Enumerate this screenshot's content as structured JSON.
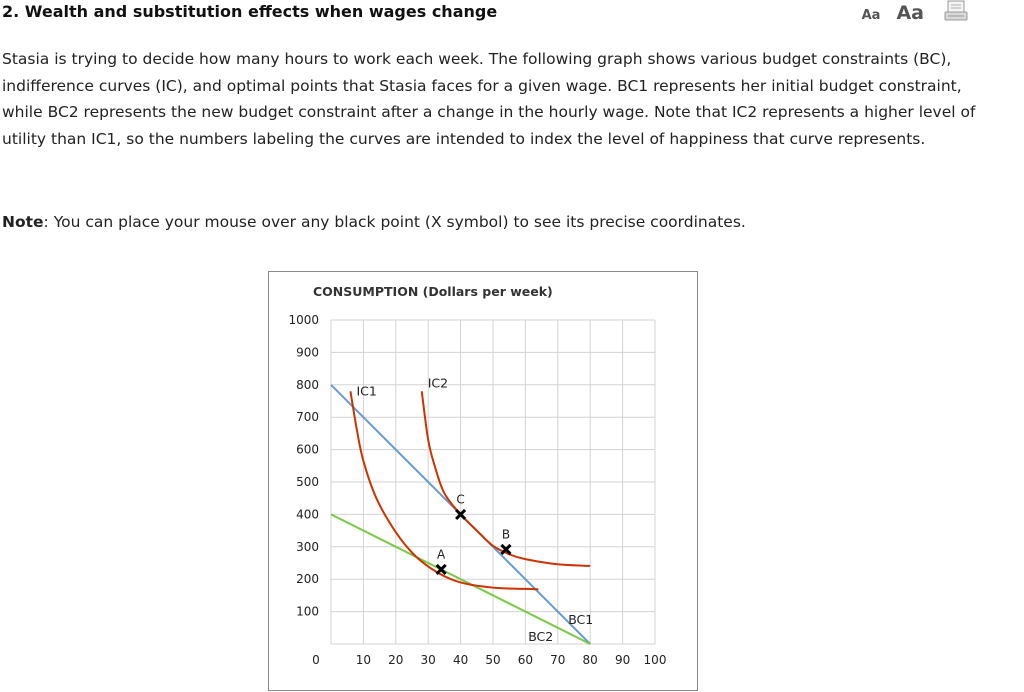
{
  "header": {
    "title": "2. Wealth and substitution effects when wages change",
    "font_small_label": "Aa",
    "font_large_label": "Aa",
    "print_icon": "printer-icon"
  },
  "intro_text": "Stasia is trying to decide how many hours to work each week. The following graph shows various budget constraints (BC), indifference curves (IC), and optimal points that Stasia faces for a given wage. BC1 represents her initial budget constraint, while BC2 represents the new budget constraint after a change in the hourly wage. Note that IC2 represents a higher level of utility than IC1, so the numbers labeling the curves are intended to index the level of happiness that curve represents.",
  "note": {
    "label": "Note",
    "text": ": You can place your mouse over any black point (X symbol) to see its precise coordinates."
  },
  "chart_data": {
    "type": "line",
    "ylabel": "CONSUMPTION (Dollars per week)",
    "xlim": [
      0,
      100
    ],
    "ylim": [
      0,
      1000
    ],
    "x_ticks": [
      "0",
      "10",
      "20",
      "30",
      "40",
      "50",
      "60",
      "70",
      "80",
      "90",
      "100"
    ],
    "y_ticks": [
      "100",
      "200",
      "300",
      "400",
      "500",
      "600",
      "700",
      "800",
      "900",
      "1000"
    ],
    "grid": true,
    "colors": {
      "budget_1": "#6a9bd1",
      "budget_2": "#77c94a",
      "indifference": "#cc3300",
      "point": "#000000",
      "grid": "#d3d3d3"
    },
    "series": [
      {
        "name": "BC1",
        "kind": "budget",
        "x": [
          0,
          80
        ],
        "y": [
          800,
          0
        ]
      },
      {
        "name": "BC2",
        "kind": "budget",
        "x": [
          0,
          80
        ],
        "y": [
          400,
          0
        ]
      },
      {
        "name": "IC1",
        "kind": "indifference",
        "x": [
          6,
          8,
          10,
          14,
          20,
          26,
          33,
          40,
          50,
          60,
          64
        ],
        "y": [
          780,
          660,
          565,
          450,
          345,
          272,
          220,
          190,
          174,
          170,
          169
        ]
      },
      {
        "name": "IC2",
        "kind": "indifference",
        "x": [
          28,
          30,
          32,
          35,
          40,
          45,
          50,
          55,
          60,
          70,
          80
        ],
        "y": [
          780,
          630,
          550,
          465,
          400,
          350,
          303,
          277,
          262,
          246,
          241
        ]
      }
    ],
    "points": [
      {
        "label": "A",
        "x": 34,
        "y": 230
      },
      {
        "label": "B",
        "x": 54,
        "y": 292
      },
      {
        "label": "C",
        "x": 40,
        "y": 400
      }
    ]
  }
}
